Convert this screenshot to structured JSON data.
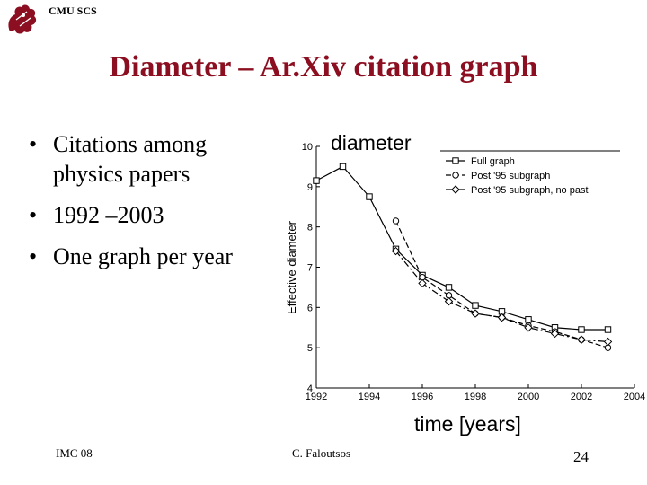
{
  "header": {
    "org": "CMU SCS",
    "title": "Diameter – Ar.Xiv citation graph"
  },
  "bullets": [
    "Citations among physics papers",
    "1992 –2003",
    "One graph per year"
  ],
  "footer": {
    "left": "IMC  08",
    "center": "C. Faloutsos",
    "page": "24"
  },
  "chart_data": {
    "type": "line",
    "title": "",
    "annotation_y": "diameter",
    "annotation_x": "time [years]",
    "xlabel": "",
    "ylabel": "Effective diameter",
    "xlim": [
      1992,
      2004
    ],
    "ylim": [
      4,
      10
    ],
    "xticks": [
      "1992",
      "1994",
      "1996",
      "1998",
      "2000",
      "2002",
      "2004"
    ],
    "yticks": [
      "4",
      "5",
      "6",
      "7",
      "8",
      "9",
      "10"
    ],
    "legend_position": "top-right",
    "series": [
      {
        "name": "Full graph",
        "marker": "square",
        "dash": "solid",
        "x": [
          1992,
          1993,
          1994,
          1995,
          1996,
          1997,
          1998,
          1999,
          2000,
          2001,
          2002,
          2003
        ],
        "y": [
          9.15,
          9.5,
          8.75,
          7.45,
          6.8,
          6.5,
          6.05,
          5.9,
          5.7,
          5.5,
          5.45,
          5.45
        ]
      },
      {
        "name": "Post '95 subgraph",
        "marker": "circle",
        "dash": "dashed",
        "x": [
          1995,
          1996,
          1997,
          1998,
          1999,
          2000,
          2001,
          2002,
          2003
        ],
        "y": [
          8.15,
          6.75,
          6.3,
          5.85,
          5.75,
          5.55,
          5.4,
          5.2,
          5.0
        ]
      },
      {
        "name": "Post '95 subgraph, no past",
        "marker": "diamond",
        "dash": "dashdot",
        "x": [
          1995,
          1996,
          1997,
          1998,
          1999,
          2000,
          2001,
          2002,
          2003
        ],
        "y": [
          7.4,
          6.6,
          6.15,
          5.85,
          5.75,
          5.5,
          5.35,
          5.2,
          5.15
        ]
      }
    ]
  }
}
